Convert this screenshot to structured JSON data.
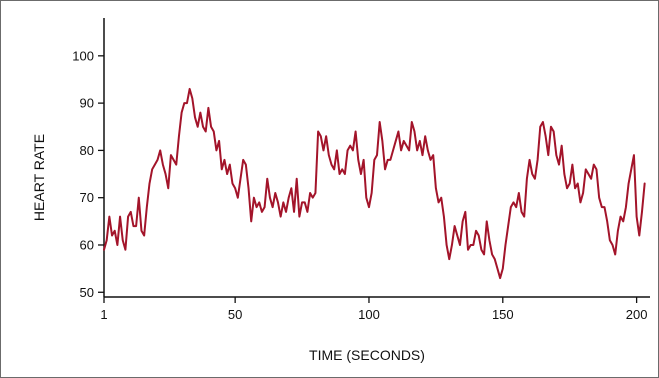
{
  "chart_data": {
    "type": "line",
    "title": "",
    "xlabel": "TIME (SECONDS)",
    "ylabel": "HEART RATE",
    "xlim": [
      1,
      205
    ],
    "ylim": [
      49,
      108
    ],
    "x_ticks": [
      1,
      50,
      100,
      150,
      200
    ],
    "y_ticks": [
      50,
      60,
      70,
      80,
      90,
      100
    ],
    "grid": false,
    "legend": "none",
    "line_color": "#a3142a",
    "series": [
      {
        "x": [
          1,
          2,
          3,
          4,
          5,
          6,
          7,
          8,
          9,
          10,
          11,
          12,
          13,
          14,
          15,
          16,
          17,
          18,
          19,
          20,
          21,
          22,
          23,
          24,
          25,
          26,
          27,
          28,
          29,
          30,
          31,
          32,
          33,
          34,
          35,
          36,
          37,
          38,
          39,
          40,
          41,
          42,
          43,
          44,
          45,
          46,
          47,
          48,
          49,
          50,
          51,
          52,
          53,
          54,
          55,
          56,
          57,
          58,
          59,
          60,
          61,
          62,
          63,
          64,
          65,
          66,
          67,
          68,
          69,
          70,
          71,
          72,
          73,
          74,
          75,
          76,
          77,
          78,
          79,
          80,
          81,
          82,
          83,
          84,
          85,
          86,
          87,
          88,
          89,
          90,
          91,
          92,
          93,
          94,
          95,
          96,
          97,
          98,
          99,
          100,
          101,
          102,
          103,
          104,
          105,
          106,
          107,
          108,
          109,
          110,
          111,
          112,
          113,
          114,
          115,
          116,
          117,
          118,
          119,
          120,
          121,
          122,
          123,
          124,
          125,
          126,
          127,
          128,
          129,
          130,
          131,
          132,
          133,
          134,
          135,
          136,
          137,
          138,
          139,
          140,
          141,
          142,
          143,
          144,
          145,
          146,
          147,
          148,
          149,
          150,
          151,
          152,
          153,
          154,
          155,
          156,
          157,
          158,
          159,
          160,
          161,
          162,
          163,
          164,
          165,
          166,
          167,
          168,
          169,
          170,
          171,
          172,
          173,
          174,
          175,
          176,
          177,
          178,
          179,
          180,
          181,
          182,
          183,
          184,
          185,
          186,
          187,
          188,
          189,
          190,
          191,
          192,
          193,
          194,
          195,
          196,
          197,
          198,
          199,
          200,
          201,
          202,
          203
        ],
        "values": [
          59,
          61,
          66,
          62,
          63,
          60,
          66,
          61,
          59,
          66,
          67,
          64,
          64,
          70,
          63,
          62,
          68,
          73,
          76,
          77,
          78,
          80,
          77,
          75,
          72,
          79,
          78,
          77,
          83,
          88,
          90,
          90,
          93,
          91,
          87,
          85,
          88,
          85,
          84,
          89,
          85,
          84,
          80,
          82,
          76,
          78,
          75,
          77,
          73,
          72,
          70,
          74,
          78,
          77,
          72,
          65,
          70,
          68,
          69,
          67,
          68,
          74,
          70,
          68,
          71,
          69,
          66,
          69,
          67,
          70,
          72,
          67,
          74,
          66,
          69,
          69,
          67,
          71,
          70,
          71,
          84,
          83,
          80,
          83,
          79,
          77,
          76,
          80,
          75,
          76,
          75,
          80,
          81,
          80,
          84,
          78,
          75,
          78,
          70,
          68,
          71,
          78,
          79,
          86,
          82,
          76,
          78,
          78,
          80,
          82,
          84,
          80,
          82,
          81,
          80,
          86,
          84,
          80,
          82,
          79,
          83,
          80,
          78,
          79,
          72,
          69,
          70,
          66,
          60,
          57,
          60,
          64,
          62,
          60,
          65,
          67,
          59,
          60,
          60,
          63,
          62,
          59,
          58,
          65,
          61,
          58,
          57,
          55,
          53,
          55,
          60,
          64,
          68,
          69,
          68,
          71,
          67,
          66,
          74,
          78,
          75,
          74,
          78,
          85,
          86,
          83,
          79,
          85,
          84,
          79,
          77,
          81,
          75,
          72,
          73,
          77,
          72,
          73,
          69,
          71,
          76,
          75,
          74,
          77,
          76,
          70,
          68,
          68,
          65,
          61,
          60,
          58,
          63,
          66,
          65,
          68,
          73,
          76,
          79,
          66,
          62,
          67,
          73
        ]
      }
    ]
  }
}
